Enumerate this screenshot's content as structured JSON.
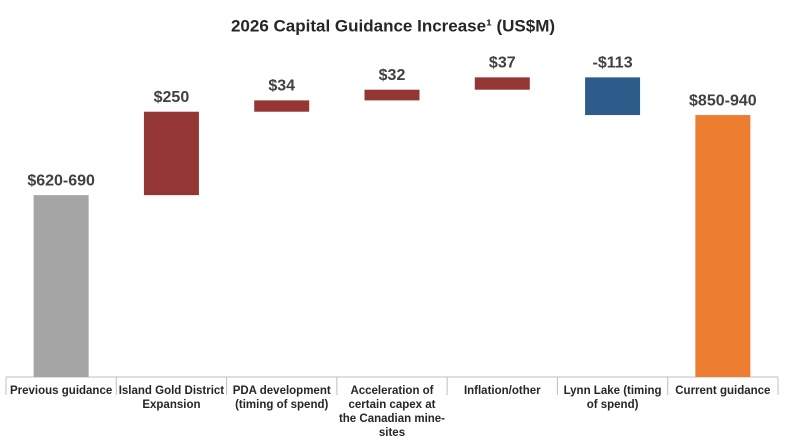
{
  "chart_data": {
    "type": "waterfall",
    "title": "2026 Capital Guidance Increase¹ (US$M)",
    "categories": [
      "Previous guidance",
      "Island Gold District Expansion",
      "PDA development (timing of spend)",
      "Acceleration of certain capex at the Canadian mine-sites",
      "Inflation/other",
      "Lynn Lake (timing of spend)",
      "Current guidance"
    ],
    "values": [
      655,
      250,
      34,
      32,
      37,
      -113,
      895
    ],
    "value_labels": [
      "$620-690",
      "$250",
      "$34",
      "$32",
      "$37",
      "-$113",
      "$850-940"
    ],
    "colors": [
      "#a5a5a5",
      "#943634",
      "#943634",
      "#943634",
      "#943634",
      "#2e5c8a",
      "#ed7d31"
    ],
    "ylim": [
      110,
      1060
    ]
  }
}
